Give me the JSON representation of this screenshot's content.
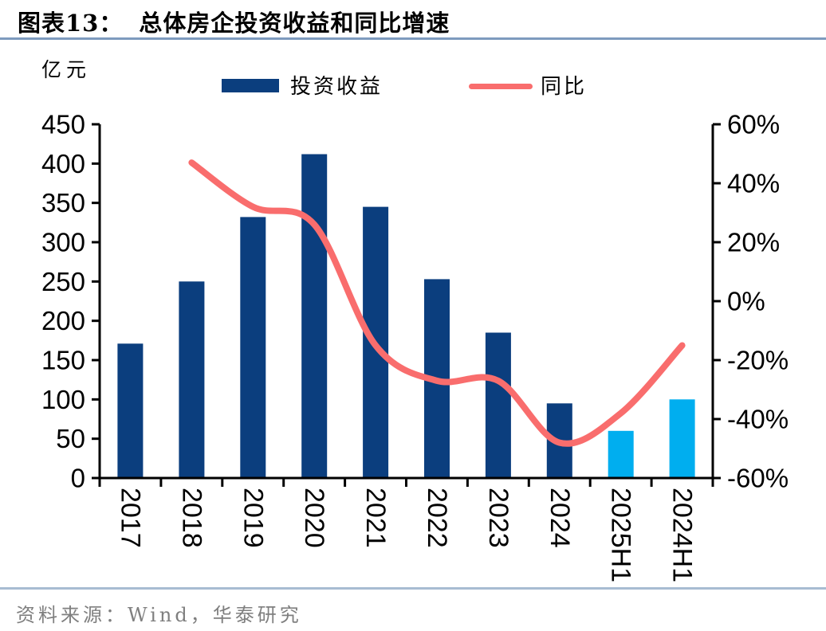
{
  "header": {
    "figure_label": "图表13：",
    "title": "总体房企投资收益和同比增速"
  },
  "legend": {
    "bar_label": "投资收益",
    "line_label": "同比"
  },
  "footer": {
    "source": "资料来源：Wind，华泰研究"
  },
  "colors": {
    "bar_navy": "#0B3E7E",
    "bar_cyan": "#00AEEF",
    "line_red": "#F96D6D",
    "axis_black": "#000000",
    "title_rule": "#7E9BBE",
    "footer_rule": "#A8BCD2",
    "footer_text": "#7F7F7F"
  },
  "chart_data": {
    "type": "bar+line combo",
    "categories": [
      "2017",
      "2018",
      "2019",
      "2020",
      "2021",
      "2022",
      "2023",
      "2024",
      "2025H1",
      "2024H1"
    ],
    "series": [
      {
        "name": "投资收益",
        "type": "bar",
        "axis": "left",
        "values": [
          171,
          250,
          332,
          412,
          345,
          253,
          185,
          95,
          60,
          100
        ],
        "point_colors": [
          "#0B3E7E",
          "#0B3E7E",
          "#0B3E7E",
          "#0B3E7E",
          "#0B3E7E",
          "#0B3E7E",
          "#0B3E7E",
          "#0B3E7E",
          "#00AEEF",
          "#00AEEF"
        ]
      },
      {
        "name": "同比",
        "type": "line",
        "axis": "right",
        "values": [
          null,
          47,
          32,
          26,
          -15,
          -27,
          -27,
          -48,
          -38,
          -15
        ],
        "smooth": true
      }
    ],
    "left_axis": {
      "unit": "亿元",
      "min": 0,
      "max": 450,
      "step": 50
    },
    "right_axis": {
      "min": -60,
      "max": 60,
      "step": 20,
      "format": "percent"
    },
    "grid": false,
    "legend_position": "top"
  }
}
